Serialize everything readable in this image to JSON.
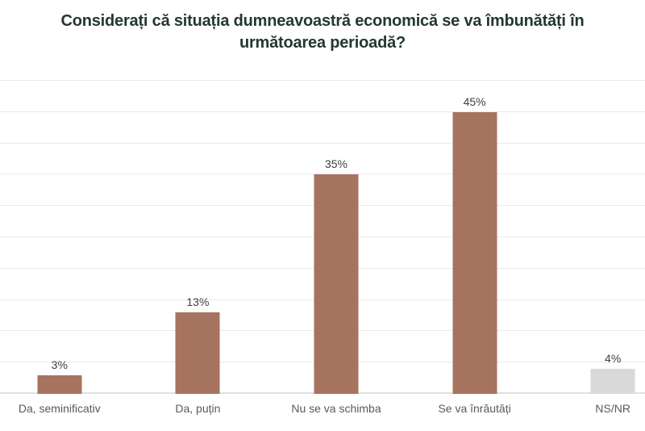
{
  "title": {
    "line1": "Considerați că situația dumneavoastră economică se va îmbunătăți în",
    "line2": "următoarea perioadă?"
  },
  "chart_data": {
    "type": "bar",
    "title": "Considerați că situația dumneavoastră economică se va îmbunătăți în următoarea perioadă?",
    "categories": [
      "Da, seminificativ",
      "Da, puțin",
      "Nu se va schimba",
      "Se va înrăutăți",
      "NS/NR"
    ],
    "values": [
      3,
      13,
      35,
      45,
      4
    ],
    "value_labels": [
      "3%",
      "13%",
      "35%",
      "45%",
      "4%"
    ],
    "bar_colors": [
      "#a6735f",
      "#a6735f",
      "#a6735f",
      "#a6735f",
      "#d9d9d9"
    ],
    "xlabel": "",
    "ylabel": "",
    "ylim": [
      0,
      50
    ],
    "grid_step": 5,
    "grid": true,
    "legend": false,
    "y_tick_labels_visible": false,
    "background_color": "#ffffff",
    "title_color": "#233831",
    "value_label_color": "#404040",
    "category_label_color": "#595959",
    "gridline_color": "#e9e9e9"
  }
}
